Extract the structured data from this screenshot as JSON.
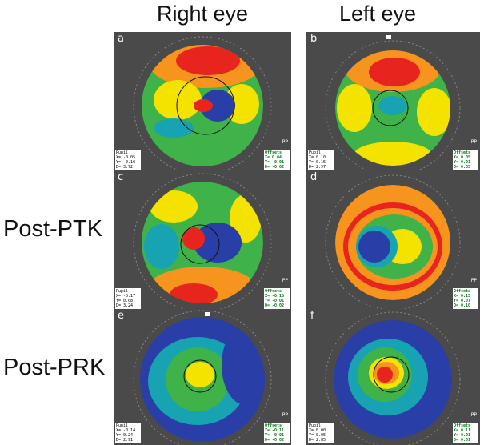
{
  "columns": {
    "right": "Right eye",
    "left": "Left eye"
  },
  "rows": {
    "ptk": "Post-PTK",
    "prk": "Post-PRK"
  },
  "panels": {
    "a": {
      "letter": "a",
      "pupil": [
        "Pupil",
        "X= -0.05",
        "Y= -0.10",
        "D= 3.72"
      ],
      "offset": [
        "Offsets",
        "X= 0.04",
        "Y= -0.01",
        "D= -0.02"
      ],
      "pp": "PP"
    },
    "b": {
      "letter": "b",
      "pupil": [
        "Pupil",
        "X= 0.10",
        "Y= 0.15",
        "D= 2.97"
      ],
      "offset": [
        "Offsets",
        "X= 0.05",
        "Y= 0.01",
        "D= 0.05"
      ],
      "pp": "PP"
    },
    "c": {
      "letter": "c",
      "pupil": [
        "Pupil",
        "X= -0.17",
        "Y= 0.08",
        "D= 3.24"
      ],
      "offset": [
        "Offsets",
        "X= -0.15",
        "Y= -0.01",
        "D= -0.02"
      ],
      "pp": "PP"
    },
    "d": {
      "letter": "d",
      "pupil": [],
      "offset": [
        "Offsets",
        "X= 0.15",
        "Y= 0.07",
        "D= 0.10"
      ],
      "pp": "PP"
    },
    "e": {
      "letter": "e",
      "pupil": [
        "Pupil",
        "X= -0.14",
        "Y= 0.24",
        "D= 2.91"
      ],
      "offset": [
        "Offsets",
        "X= -0.11",
        "Y= -0.01",
        "D= -0.02"
      ],
      "pp": "PP"
    },
    "f": {
      "letter": "f",
      "pupil": [
        "Pupil",
        "X= 0.00",
        "Y= 0.05",
        "D= 2.85"
      ],
      "offset": [
        "Offsets",
        "X= 0.11",
        "Y= 0.01",
        "D= 0.01"
      ],
      "pp": "PP"
    }
  },
  "colors": {
    "red": "#e8241f",
    "orange": "#f7941d",
    "yellow": "#f4e200",
    "green": "#3fb34a",
    "cyan": "#17a3b1",
    "blue": "#2a3ea8",
    "surround": "#3a3a3a"
  }
}
